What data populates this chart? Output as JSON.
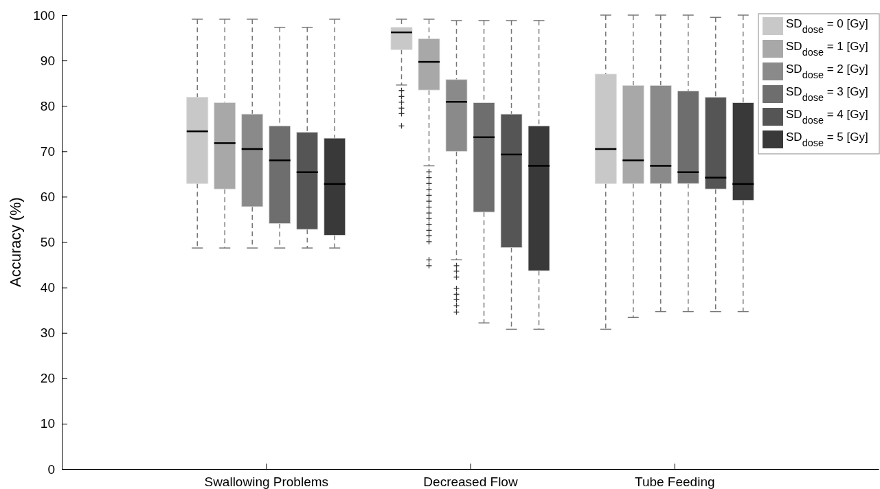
{
  "chart_data": {
    "type": "box",
    "ylabel": "Accuracy (%)",
    "categories": [
      "Swallowing Problems",
      "Decreased Flow",
      "Tube Feeding"
    ],
    "ylim": [
      0,
      100
    ],
    "yticks": [
      0,
      10,
      20,
      30,
      40,
      50,
      60,
      70,
      80,
      90,
      100
    ],
    "legend": "top right",
    "marker": "cross",
    "line_style": "dashed",
    "series": [
      {
        "name": "SD$_{dose}$ = 0 [Gy]",
        "color": "#c8c8c8",
        "boxes": [
          {
            "low": 48.7,
            "q1": 62.9,
            "median": 74.4,
            "q3": 81.9,
            "high": 99.1
          },
          {
            "low": 84.6,
            "q1": 92.4,
            "median": 96.2,
            "q3": 97.3,
            "high": 99.1,
            "outliers": [
              83.4,
              82.1,
              80.8,
              79.5,
              78.3,
              75.6
            ]
          },
          {
            "low": 30.8,
            "q1": 62.9,
            "median": 70.5,
            "q3": 87.0,
            "high": 100
          }
        ]
      },
      {
        "name": "SD$_{dose}$ = 1 [Gy]",
        "color": "#a8a8a8",
        "boxes": [
          {
            "low": 48.7,
            "q1": 61.7,
            "median": 71.8,
            "q3": 80.7,
            "high": 99.1
          },
          {
            "low": 66.8,
            "q1": 83.5,
            "median": 89.7,
            "q3": 94.8,
            "high": 99.1,
            "outliers": [
              65.5,
              64.2,
              62.9,
              61.6,
              60.3,
              59.0,
              57.7,
              56.4,
              55.2,
              53.9,
              52.6,
              51.4,
              50.1,
              46.1,
              44.8
            ]
          },
          {
            "low": 33.4,
            "q1": 62.9,
            "median": 68.0,
            "q3": 84.5,
            "high": 100
          }
        ]
      },
      {
        "name": "SD$_{dose}$ = 2 [Gy]",
        "color": "#8a8a8a",
        "boxes": [
          {
            "low": 48.7,
            "q1": 57.8,
            "median": 70.5,
            "q3": 78.2,
            "high": 99.1
          },
          {
            "low": 46.1,
            "q1": 70.0,
            "median": 80.9,
            "q3": 85.8,
            "high": 98.8,
            "outliers": [
              44.8,
              43.6,
              42.3,
              39.8,
              38.5,
              37.3,
              36.0,
              34.6
            ]
          },
          {
            "low": 34.7,
            "q1": 62.9,
            "median": 66.8,
            "q3": 84.5,
            "high": 100
          }
        ]
      },
      {
        "name": "SD$_{dose}$ = 3 [Gy]",
        "color": "#6e6e6e",
        "boxes": [
          {
            "low": 48.7,
            "q1": 54.1,
            "median": 68.0,
            "q3": 75.6,
            "high": 97.3
          },
          {
            "low": 32.2,
            "q1": 56.6,
            "median": 73.1,
            "q3": 80.7,
            "high": 98.8
          },
          {
            "low": 34.7,
            "q1": 62.9,
            "median": 65.4,
            "q3": 83.3,
            "high": 100
          }
        ]
      },
      {
        "name": "SD$_{dose}$ = 4 [Gy]",
        "color": "#555555",
        "boxes": [
          {
            "low": 48.7,
            "q1": 52.8,
            "median": 65.4,
            "q3": 74.2,
            "high": 97.3
          },
          {
            "low": 30.8,
            "q1": 48.8,
            "median": 69.3,
            "q3": 78.2,
            "high": 98.8
          },
          {
            "low": 34.7,
            "q1": 61.7,
            "median": 64.2,
            "q3": 81.9,
            "high": 99.5
          }
        ]
      },
      {
        "name": "SD$_{dose}$ = 5 [Gy]",
        "color": "#393939",
        "boxes": [
          {
            "low": 48.7,
            "q1": 51.5,
            "median": 62.8,
            "q3": 72.9,
            "high": 99.1
          },
          {
            "low": 30.8,
            "q1": 43.7,
            "median": 66.8,
            "q3": 75.6,
            "high": 98.8
          },
          {
            "low": 34.7,
            "q1": 59.2,
            "median": 62.8,
            "q3": 80.7,
            "high": 100
          }
        ]
      }
    ]
  }
}
